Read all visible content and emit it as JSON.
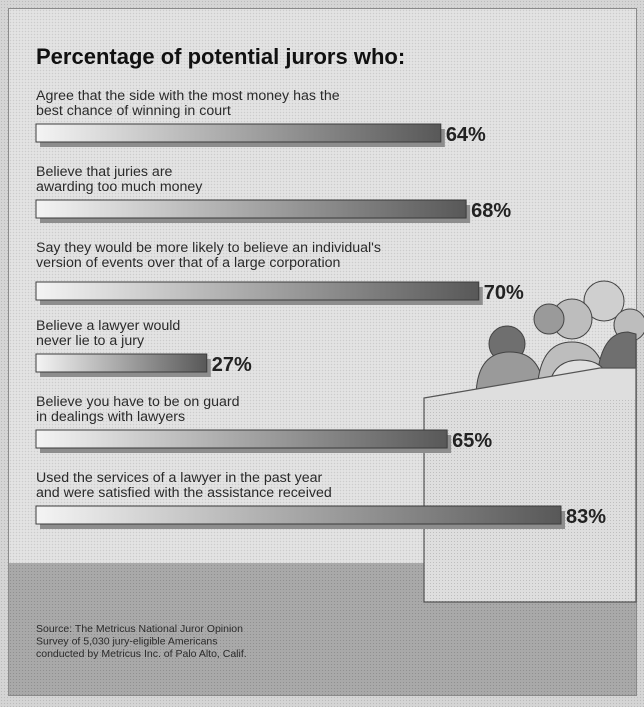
{
  "chart_data": {
    "type": "bar",
    "orientation": "horizontal",
    "title": "Percentage of potential jurors who:",
    "xlim": [
      0,
      100
    ],
    "unit": "%",
    "categories": [
      [
        "Agree that the side with the most money has the",
        "best chance of winning in court"
      ],
      [
        "Believe that juries are",
        "awarding too much money"
      ],
      [
        "Say they would be more likely to believe an individual's",
        "version of events over that of a large corporation"
      ],
      [
        "Believe a lawyer would",
        "never lie to a jury"
      ],
      [
        "Believe you have to be on guard",
        "in dealings with lawyers"
      ],
      [
        "Used the services of a lawyer in the past year",
        "and were satisfied with the assistance received"
      ]
    ],
    "values": [
      64,
      68,
      70,
      27,
      65,
      83
    ],
    "value_labels": [
      "64%",
      "68%",
      "70%",
      "27%",
      "65%",
      "83%"
    ],
    "source": [
      "Source: The Metricus National Juror Opinion",
      "Survey of 5,030 jury-eligible Americans",
      "conducted by Metricus Inc. of Palo Alto, Calif."
    ],
    "grid": false,
    "legend": "none"
  },
  "colors": {
    "bar_light": "#f4f4f4",
    "bar_dark": "#585858",
    "bar_shadow": "#8d8d8d",
    "footer_band": "#a9a9a9",
    "box": "#dedede",
    "heads": [
      "#cfcfcf",
      "#bdbdbd",
      "#9a9a9a",
      "#6f6f6f",
      "#e0e0e0"
    ]
  },
  "decoration": {
    "illustration": "jurors-in-box-icon"
  }
}
